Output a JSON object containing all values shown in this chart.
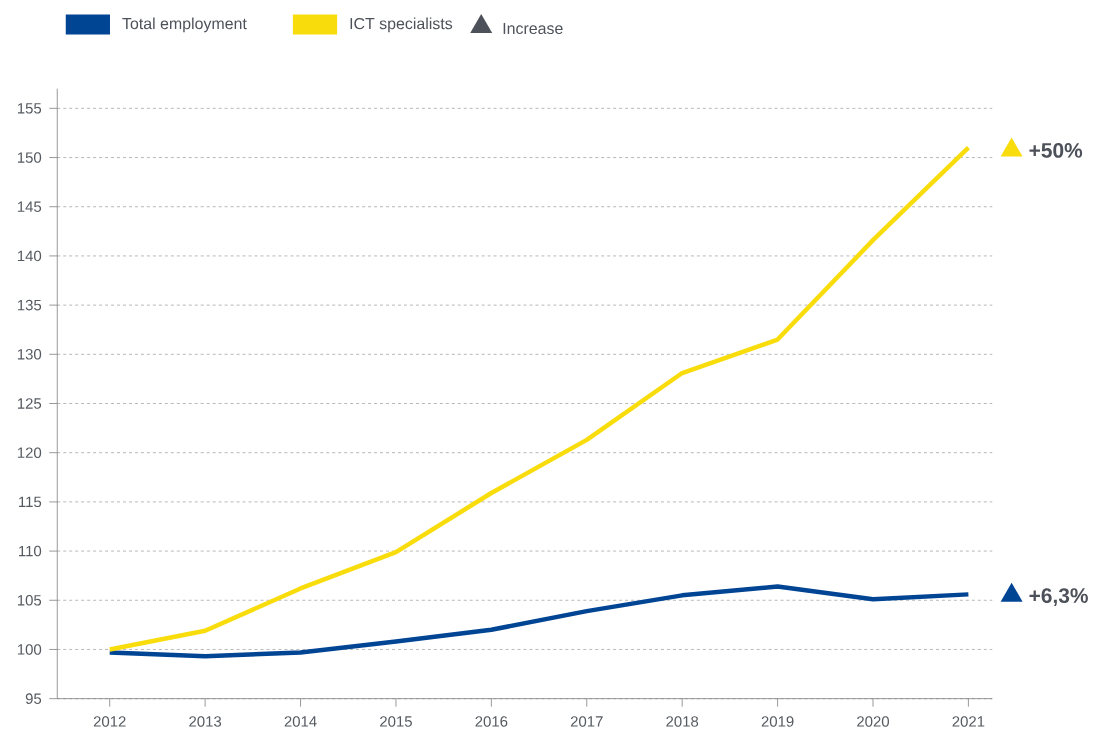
{
  "chart_data": {
    "type": "line",
    "categories": [
      "2012",
      "2013",
      "2014",
      "2015",
      "2016",
      "2017",
      "2018",
      "2019",
      "2020",
      "2021"
    ],
    "series": [
      {
        "name": "Total employment",
        "color": "#004494",
        "values": [
          99.7,
          99.3,
          99.7,
          100.8,
          102.0,
          103.9,
          105.5,
          106.4,
          105.1,
          105.6
        ]
      },
      {
        "name": "ICT specialists",
        "color": "#f9dc0c",
        "values": [
          100.0,
          101.9,
          106.2,
          109.9,
          115.9,
          121.3,
          128.1,
          131.5,
          141.6,
          151.0
        ]
      }
    ],
    "ylim": [
      95,
      157
    ],
    "yticks": [
      95,
      100,
      105,
      110,
      115,
      120,
      125,
      130,
      135,
      140,
      145,
      150,
      155
    ],
    "grid": "y",
    "legend": "top left",
    "marker": "none",
    "line_style": "solid",
    "annotations": [
      "Increase",
      "+6,3%",
      "+50%"
    ]
  }
}
